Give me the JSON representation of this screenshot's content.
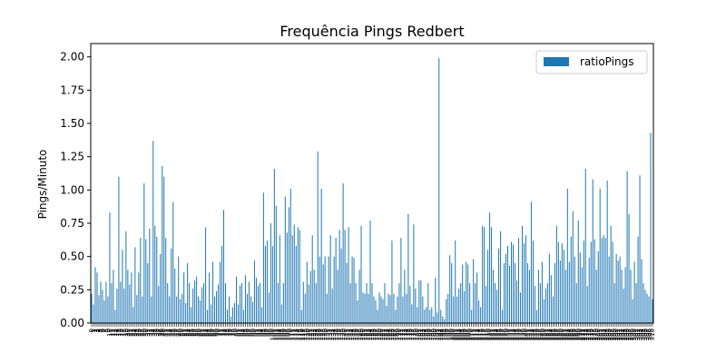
{
  "chart_data": {
    "type": "bar",
    "title": "Frequência Pings Redbert",
    "xlabel": "",
    "ylabel": "Pings/Minuto",
    "ylim": [
      0,
      2.1
    ],
    "yticks": [
      "0.00",
      "0.25",
      "0.50",
      "0.75",
      "1.00",
      "1.25",
      "1.50",
      "1.75",
      "2.00"
    ],
    "legend": {
      "position": "top-right",
      "entries": [
        "ratioPings"
      ]
    },
    "color": "#1f77b4",
    "grid": false,
    "series": [
      {
        "name": "ratioPings",
        "values": [
          0.22,
          0.14,
          0.42,
          0.38,
          0.21,
          0.31,
          0.25,
          0.17,
          0.31,
          0.2,
          0.83,
          0.3,
          0.4,
          0.1,
          0.26,
          1.1,
          0.31,
          0.55,
          0.26,
          0.69,
          0.4,
          0.29,
          0.38,
          0.12,
          0.57,
          0.21,
          0.38,
          0.64,
          0.2,
          1.05,
          0.63,
          0.45,
          0.71,
          0.2,
          1.37,
          0.73,
          0.65,
          0.28,
          0.52,
          1.18,
          1.1,
          0.64,
          0.3,
          0.2,
          0.56,
          0.91,
          0.41,
          0.2,
          0.5,
          0.18,
          0.22,
          0.38,
          0.15,
          0.45,
          0.3,
          0.12,
          0.26,
          0.32,
          0.35,
          0.2,
          0.17,
          0.27,
          0.3,
          0.72,
          0.1,
          0.38,
          0.14,
          0.46,
          0.2,
          0.24,
          0.29,
          0.46,
          0.58,
          0.85,
          0.3,
          0.1,
          0.2,
          0.05,
          0.12,
          0.15,
          0.35,
          0.14,
          0.28,
          0.3,
          0.1,
          0.36,
          0.22,
          0.31,
          0.2,
          0.16,
          0.47,
          0.34,
          0.28,
          0.3,
          0.12,
          0.98,
          0.58,
          0.62,
          0.23,
          0.75,
          0.58,
          1.16,
          0.88,
          0.3,
          0.66,
          0.14,
          0.3,
          0.95,
          0.68,
          0.87,
          1.01,
          0.66,
          0.74,
          0.58,
          0.72,
          0.7,
          0.1,
          0.31,
          0.22,
          0.46,
          0.29,
          0.39,
          0.66,
          0.4,
          0.3,
          1.29,
          0.5,
          1.01,
          0.44,
          0.5,
          0.22,
          0.5,
          0.66,
          0.26,
          0.5,
          0.64,
          0.4,
          0.7,
          0.56,
          1.05,
          0.7,
          0.45,
          0.72,
          0.3,
          0.5,
          0.49,
          0.3,
          0.17,
          0.4,
          0.73,
          0.23,
          0.22,
          0.3,
          0.22,
          0.77,
          0.3,
          0.2,
          0.17,
          0.1,
          0.23,
          0.2,
          0.18,
          0.3,
          0.13,
          0.22,
          0.21,
          0.62,
          0.22,
          0.1,
          0.2,
          0.3,
          0.64,
          0.2,
          0.4,
          0.22,
          0.82,
          0.28,
          0.14,
          0.74,
          0.26,
          0.12,
          0.32,
          0.32,
          0.2,
          0.1,
          0.12,
          0.3,
          0.1,
          0.12,
          0.05,
          0.34,
          0.08,
          1.99,
          0.1,
          0.05,
          0.03,
          0.18,
          0.22,
          0.51,
          0.45,
          0.2,
          0.62,
          0.2,
          0.26,
          0.3,
          0.44,
          0.24,
          0.46,
          0.44,
          0.3,
          0.1,
          0.48,
          0.3,
          0.38,
          0.17,
          0.12,
          0.73,
          0.72,
          0.28,
          0.55,
          0.83,
          0.72,
          0.4,
          0.3,
          0.25,
          0.56,
          0.69,
          0.1,
          0.45,
          0.52,
          0.58,
          0.43,
          0.61,
          0.59,
          0.45,
          0.32,
          0.64,
          0.23,
          0.73,
          0.6,
          0.66,
          0.45,
          0.4,
          0.91,
          0.62,
          0.28,
          0.1,
          0.4,
          0.3,
          0.46,
          0.18,
          0.26,
          0.3,
          0.52,
          0.36,
          0.2,
          0.45,
          0.73,
          0.61,
          0.47,
          0.6,
          0.55,
          0.4,
          1.01,
          0.46,
          0.65,
          0.84,
          0.5,
          0.3,
          0.77,
          0.53,
          0.42,
          0.62,
          1.16,
          0.28,
          0.49,
          0.61,
          1.08,
          0.63,
          0.4,
          0.54,
          1.01,
          0.64,
          0.66,
          0.64,
          1.07,
          0.5,
          0.73,
          0.61,
          0.3,
          0.52,
          0.47,
          0.5,
          0.4,
          0.26,
          0.42,
          1.14,
          0.82,
          0.4,
          0.18,
          0.46,
          0.3,
          0.65,
          1.11,
          0.48,
          0.3,
          0.25,
          0.22,
          0.2,
          1.43,
          0.18
        ]
      }
    ]
  }
}
